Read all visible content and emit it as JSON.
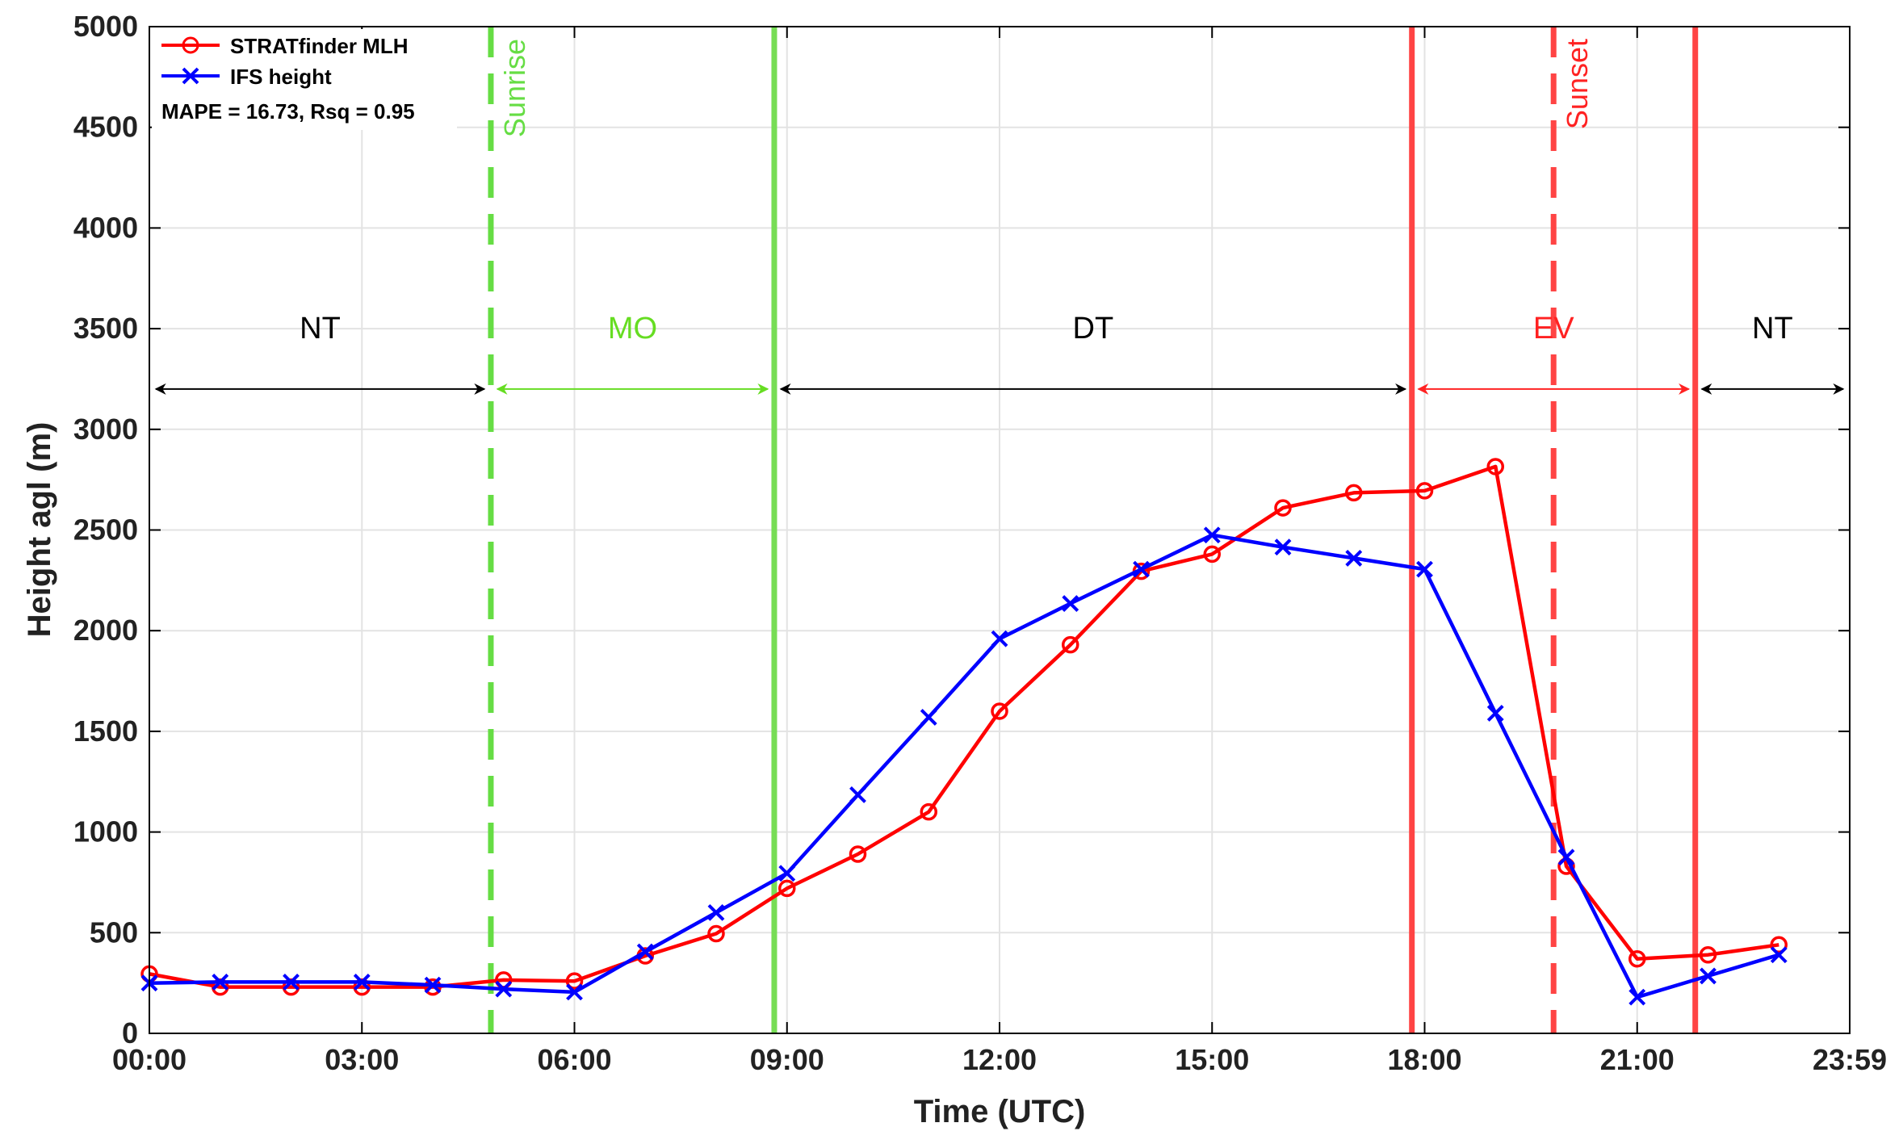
{
  "chart_data": {
    "type": "line",
    "xlabel": "Time (UTC)",
    "ylabel": "Height agl (m)",
    "xlim": [
      0,
      24
    ],
    "ylim": [
      0,
      5000
    ],
    "xticks": [
      {
        "value": 0,
        "label": "00:00"
      },
      {
        "value": 3,
        "label": "03:00"
      },
      {
        "value": 6,
        "label": "06:00"
      },
      {
        "value": 9,
        "label": "09:00"
      },
      {
        "value": 12,
        "label": "12:00"
      },
      {
        "value": 15,
        "label": "15:00"
      },
      {
        "value": 18,
        "label": "18:00"
      },
      {
        "value": 21,
        "label": "21:00"
      },
      {
        "value": 24,
        "label": "23:59"
      }
    ],
    "yticks": [
      0,
      500,
      1000,
      1500,
      2000,
      2500,
      3000,
      3500,
      4000,
      4500,
      5000
    ],
    "grid": true,
    "legend_position": "top-left",
    "annotation": "MAPE = 16.73, Rsq =  0.95",
    "series": [
      {
        "name": "STRATfinder MLH",
        "color": "#ff0000",
        "marker": "circle",
        "x": [
          0,
          1,
          2,
          3,
          4,
          5,
          6,
          7,
          8,
          9,
          10,
          11,
          12,
          13,
          14,
          15,
          16,
          17,
          18,
          19,
          20,
          21,
          22,
          23
        ],
        "values": [
          295,
          230,
          230,
          230,
          230,
          265,
          260,
          385,
          495,
          720,
          890,
          1100,
          1600,
          1930,
          2295,
          2380,
          2610,
          2685,
          2695,
          2815,
          830,
          370,
          390,
          440
        ]
      },
      {
        "name": "IFS height",
        "color": "#0000ff",
        "marker": "x",
        "x": [
          0,
          1,
          2,
          3,
          4,
          5,
          6,
          7,
          8,
          9,
          10,
          11,
          12,
          13,
          14,
          15,
          16,
          17,
          18,
          19,
          20,
          21,
          22,
          23
        ],
        "values": [
          250,
          255,
          255,
          255,
          240,
          220,
          205,
          405,
          600,
          795,
          1185,
          1570,
          1960,
          2135,
          2305,
          2475,
          2415,
          2360,
          2305,
          1590,
          875,
          180,
          285,
          390
        ]
      }
    ],
    "event_lines": [
      {
        "label": "Sunrise",
        "x": 4.82,
        "color": "#66dd44",
        "style": "dashed",
        "label_color": "#66dd44"
      },
      {
        "label": "",
        "x": 8.82,
        "color": "#77dd55",
        "style": "solid"
      },
      {
        "label": "",
        "x": 17.82,
        "color": "#ff4444",
        "style": "solid"
      },
      {
        "label": "Sunset",
        "x": 19.82,
        "color": "#ff4444",
        "style": "dashed",
        "label_color": "#ff2222"
      },
      {
        "label": "",
        "x": 21.82,
        "color": "#ff4444",
        "style": "solid"
      }
    ],
    "periods": [
      {
        "label": "NT",
        "x_start": 0,
        "x_end": 4.82,
        "color": "#000000"
      },
      {
        "label": "MO",
        "x_start": 4.82,
        "x_end": 8.82,
        "color": "#66dd22"
      },
      {
        "label": "DT",
        "x_start": 8.82,
        "x_end": 17.82,
        "color": "#000000"
      },
      {
        "label": "EV",
        "x_start": 17.82,
        "x_end": 21.82,
        "color": "#ff2222"
      },
      {
        "label": "NT",
        "x_start": 21.82,
        "x_end": 24,
        "color": "#000000"
      }
    ],
    "period_arrow_y": 3200,
    "period_label_y": 3500
  }
}
